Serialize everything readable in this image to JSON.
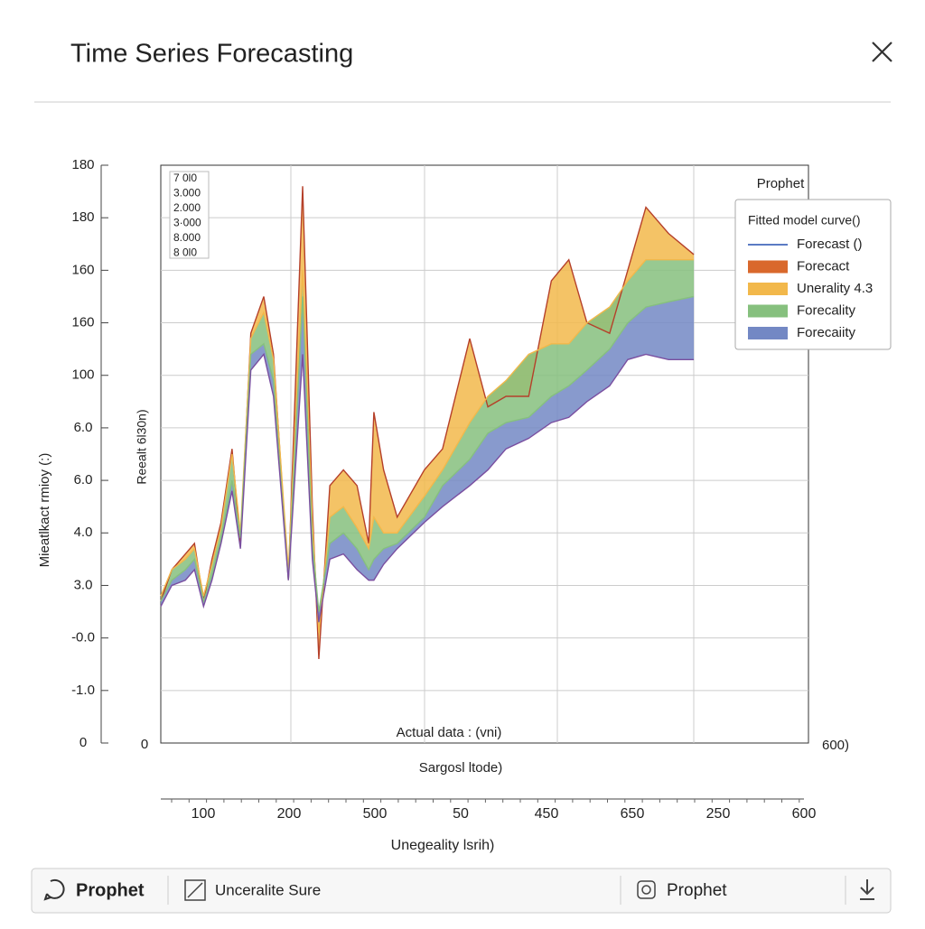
{
  "header": {
    "title": "Time Series Forecasting"
  },
  "chart_data": {
    "type": "area",
    "inset_labels": [
      "7 0l0",
      "3.000",
      "2.000",
      "3·000",
      "8.000",
      "8 0l0"
    ],
    "y_axis_labels": [
      "0",
      "-1.0",
      "-0.0",
      "3.0",
      "4.0",
      "6.0",
      "6.0",
      "100",
      "160",
      "160",
      "180",
      "180"
    ],
    "y_title": "Mieatlkact rmioy (:)",
    "y_inner_title": "Reealt 6l30n)",
    "annotation": "Actual data : (vni)",
    "x_subtitle": "Sargosl ltode)",
    "left_zero": "0",
    "right_label": "600)",
    "x_axis_labels": [
      "100",
      "200",
      "500",
      "50",
      "450",
      "650",
      "250",
      "600"
    ],
    "x_title": "Unegeality lsrih)",
    "legend_header": "Prophet",
    "legend_title": "Fitted model curve()",
    "legend_line": {
      "name": "Forecast ()",
      "color": "#5b7bc4"
    },
    "xlim": [
      0,
      100
    ],
    "ylim": [
      0,
      11
    ],
    "grid": true,
    "x": [
      0,
      1.7,
      3.8,
      5.2,
      6.6,
      7.9,
      9.3,
      11.0,
      12.3,
      13.9,
      15.9,
      17.4,
      19.7,
      21.9,
      23.4,
      24.4,
      26.1,
      28.2,
      30.3,
      32.1,
      32.9,
      34.4,
      36.5,
      40.7,
      43.5,
      47.7,
      50.5,
      53.3,
      56.8,
      60.3,
      63.0,
      65.8,
      69.3,
      72.1,
      74.9,
      78.4,
      82.3
    ],
    "series": [
      {
        "name": "Forecact",
        "color": "#d9682c",
        "values": [
          2.7,
          3.3,
          3.6,
          3.8,
          2.7,
          3.5,
          4.2,
          5.6,
          3.8,
          7.8,
          8.5,
          7.4,
          3.1,
          10.6,
          4.5,
          1.6,
          4.9,
          5.2,
          4.9,
          3.8,
          6.3,
          5.2,
          4.3,
          5.2,
          5.6,
          7.7,
          6.4,
          6.6,
          6.6,
          8.8,
          9.2,
          8.0,
          7.8,
          9.0,
          10.2,
          9.7,
          9.3
        ]
      },
      {
        "name": "Unerality 4.3",
        "color": "#f2b84b",
        "values": [
          2.8,
          3.3,
          3.5,
          3.7,
          2.8,
          3.4,
          4.1,
          5.5,
          4.0,
          7.7,
          8.2,
          7.3,
          3.3,
          9.0,
          4.2,
          2.1,
          4.3,
          4.5,
          4.1,
          3.7,
          4.3,
          4.0,
          4.0,
          4.7,
          5.2,
          6.1,
          6.6,
          6.9,
          7.4,
          7.6,
          7.6,
          8.0,
          8.3,
          8.8,
          9.2,
          9.2,
          9.2
        ]
      },
      {
        "name": "Forecality",
        "color": "#86c07e",
        "values": [
          2.7,
          3.1,
          3.3,
          3.5,
          2.7,
          3.2,
          3.9,
          5.0,
          3.9,
          7.4,
          7.6,
          6.9,
          3.1,
          8.5,
          3.8,
          2.5,
          3.8,
          4.0,
          3.7,
          3.3,
          3.5,
          3.7,
          3.8,
          4.3,
          4.9,
          5.4,
          5.9,
          6.1,
          6.2,
          6.6,
          6.8,
          7.1,
          7.5,
          8.0,
          8.3,
          8.4,
          8.5
        ]
      },
      {
        "name": "Forecaiity",
        "color": "#7388c4",
        "values": [
          2.6,
          3.0,
          3.1,
          3.3,
          2.6,
          3.1,
          3.8,
          4.8,
          3.7,
          7.1,
          7.4,
          6.6,
          3.1,
          7.4,
          3.5,
          2.3,
          3.5,
          3.6,
          3.3,
          3.1,
          3.1,
          3.4,
          3.7,
          4.2,
          4.5,
          4.9,
          5.2,
          5.6,
          5.8,
          6.1,
          6.2,
          6.5,
          6.8,
          7.3,
          7.4,
          7.3,
          7.3
        ]
      }
    ]
  },
  "toolbar": {
    "left": "Prophet",
    "middle": "Unceralite Sure",
    "right": "Prophet"
  }
}
